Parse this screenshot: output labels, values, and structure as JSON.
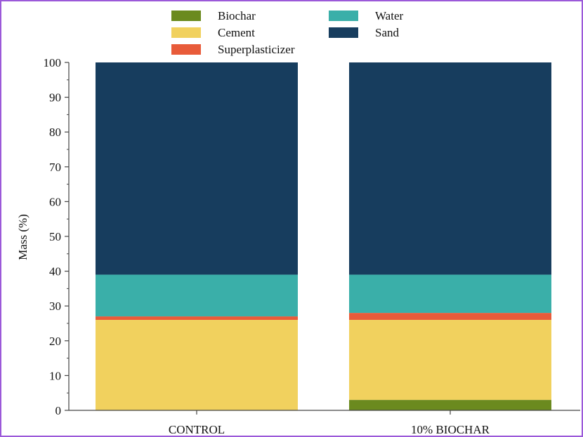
{
  "chart_data": {
    "type": "bar",
    "stacked": true,
    "title": "",
    "xlabel": "",
    "ylabel": "Mass (%)",
    "ylim": [
      0,
      100
    ],
    "yticks": [
      0,
      10,
      20,
      30,
      40,
      50,
      60,
      70,
      80,
      90,
      100
    ],
    "categories": [
      "CONTROL",
      "10% BIOCHAR"
    ],
    "series": [
      {
        "name": "Biochar",
        "color": "#6b8a1f",
        "values": [
          0,
          3
        ]
      },
      {
        "name": "Cement",
        "color": "#f1d15e",
        "values": [
          26,
          23
        ]
      },
      {
        "name": "Superplasticizer",
        "color": "#e85b3a",
        "values": [
          1,
          2
        ]
      },
      {
        "name": "Water",
        "color": "#3aafa9",
        "values": [
          12,
          11
        ]
      },
      {
        "name": "Sand",
        "color": "#173d5e",
        "values": [
          61,
          61
        ]
      }
    ],
    "legend": {
      "placement": "top",
      "columns": [
        [
          "Biochar",
          "Cement",
          "Superplasticizer"
        ],
        [
          "Water",
          "Sand"
        ]
      ]
    }
  }
}
